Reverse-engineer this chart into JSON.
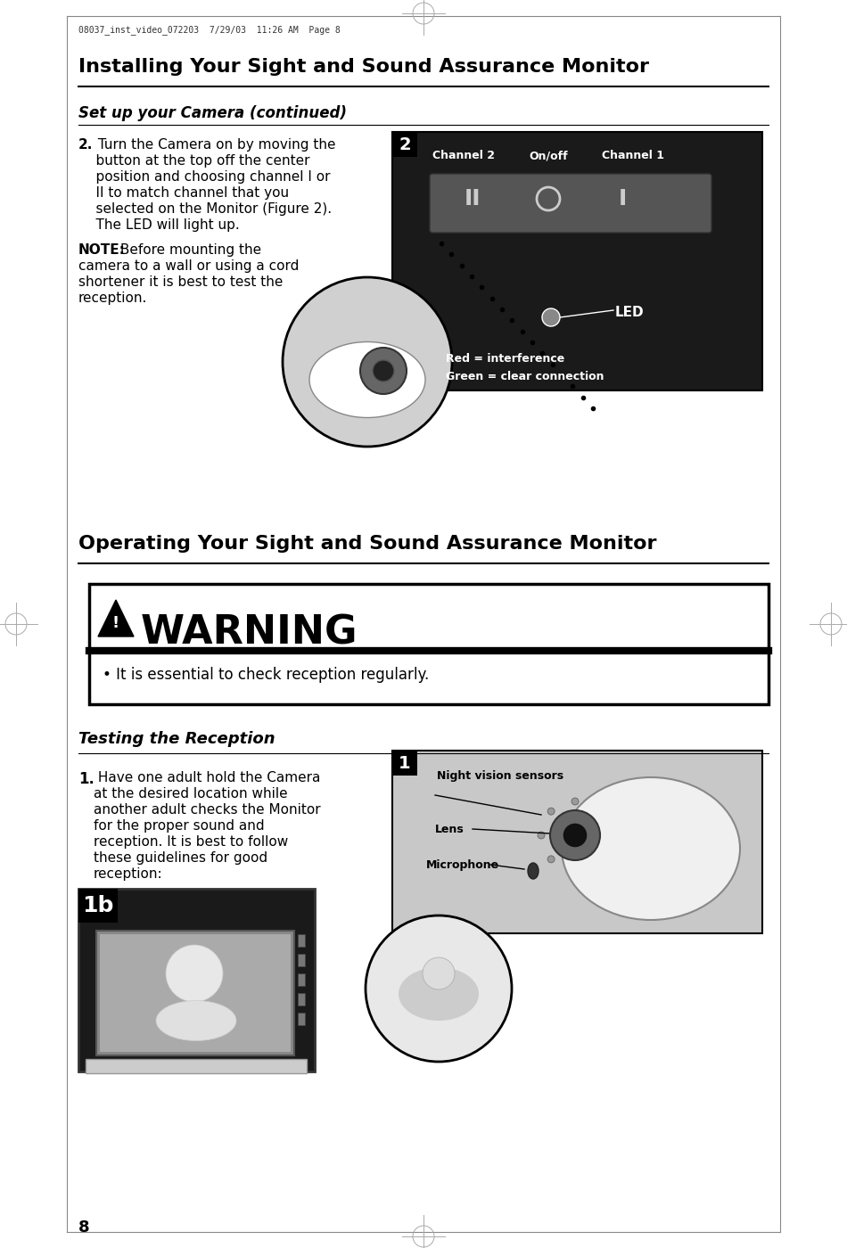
{
  "bg_color": "#ffffff",
  "header_text": "08037_inst_video_072203  7/29/03  11:26 AM  Page 8",
  "section1_title": "Installing Your Sight and Sound Assurance Monitor",
  "section2_title": "Operating Your Sight and Sound Assurance Monitor",
  "subsection1": "Set up your Camera (continued)",
  "subsection2": "Testing the Reception",
  "fig2_label": "2",
  "fig2_channel2": "Channel 2",
  "fig2_onoff": "On/off",
  "fig2_channel1": "Channel 1",
  "fig2_led": "LED",
  "fig2_red": "Red = interference",
  "fig2_green": "Green = clear connection",
  "warning_title": "WARNING",
  "warning_bullet": "• It is essential to check reception regularly.",
  "fig1_label": "1",
  "fig1_night": "Night vision sensors",
  "fig1_lens": "Lens",
  "fig1_microphone": "Microphone",
  "fig1b_label": "1b",
  "page_number": "8"
}
